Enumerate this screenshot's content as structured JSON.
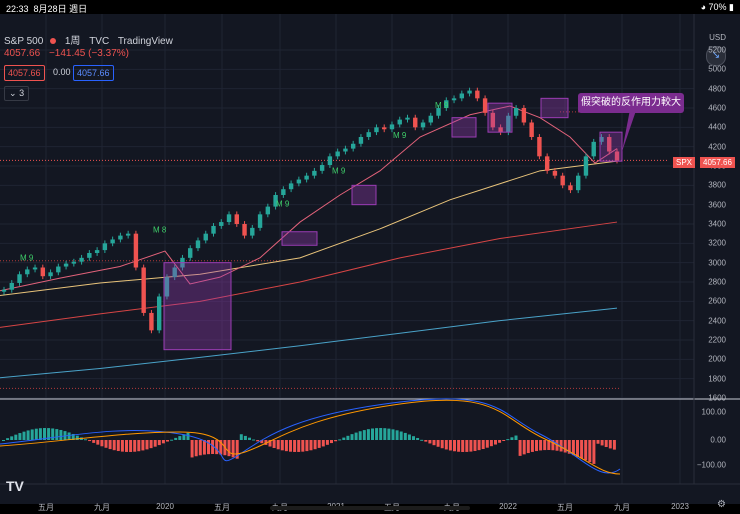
{
  "status_bar": {
    "time": "22:33",
    "date": "8月28日 週日",
    "battery": "70%"
  },
  "header": {
    "symbol": "S&P 500",
    "interval": "1周",
    "exchange": "TVC",
    "brand": "TradingView",
    "price": "4057.66",
    "change": "−141.45 (−3.37%)"
  },
  "price_boxes": {
    "bid": "4057.66",
    "spread": "0.00",
    "ask": "4057.66"
  },
  "indicator_count": "3",
  "currency": "USD",
  "callout": "假突破的反作用力較大",
  "last_price_tag": {
    "symbol": "SPX",
    "value": "4057.66"
  },
  "tv_logo": "TV",
  "chart_data": {
    "type": "candlestick",
    "price_axis": [
      1600,
      1800,
      2000,
      2200,
      2400,
      2600,
      2800,
      3000,
      3200,
      3400,
      3600,
      3800,
      4000,
      4200,
      4400,
      4600,
      4800,
      5000,
      5200
    ],
    "macd_axis": [
      "100.00",
      "0.00",
      "−100.00"
    ],
    "x_labels": [
      "五月",
      "九月",
      "2020",
      "五月",
      "九月",
      "2021",
      "五月",
      "九月",
      "2022",
      "五月",
      "九月",
      "2023"
    ],
    "close_series": [
      2720,
      2790,
      2880,
      2930,
      2950,
      2860,
      2900,
      2960,
      2990,
      3010,
      3050,
      3100,
      3130,
      3200,
      3240,
      3280,
      3300,
      2950,
      2480,
      2300,
      2650,
      2850,
      2950,
      3050,
      3150,
      3230,
      3300,
      3380,
      3420,
      3500,
      3400,
      3280,
      3360,
      3500,
      3580,
      3700,
      3760,
      3820,
      3860,
      3900,
      3950,
      4010,
      4100,
      4150,
      4180,
      4230,
      4300,
      4350,
      4400,
      4380,
      4430,
      4480,
      4500,
      4400,
      4450,
      4520,
      4600,
      4680,
      4700,
      4750,
      4780,
      4700,
      4550,
      4400,
      4350,
      4520,
      4600,
      4450,
      4300,
      4100,
      3950,
      3900,
      3800,
      3750,
      3900,
      4100,
      4250,
      4300,
      4150,
      4057.66
    ],
    "series": [
      {
        "name": "MA short",
        "color": "#e2627a"
      },
      {
        "name": "MA mid",
        "color": "#e8c37a"
      },
      {
        "name": "MA long",
        "color": "#d64545"
      },
      {
        "name": "MA longest",
        "color": "#4aa3c9"
      }
    ],
    "td_labels": [
      {
        "text": "M 9",
        "price": 3020
      },
      {
        "text": "M 8",
        "price": 3310
      },
      {
        "text": "M 9",
        "price": 3580
      },
      {
        "text": "M 9",
        "price": 3920
      },
      {
        "text": "M 9",
        "price": 4290
      },
      {
        "text": "M 9",
        "price": 4600
      }
    ]
  }
}
